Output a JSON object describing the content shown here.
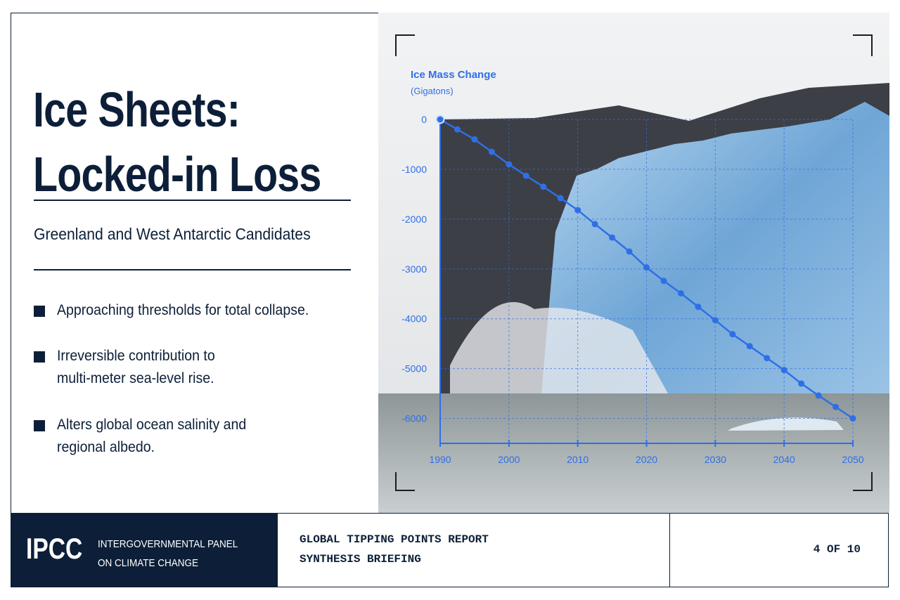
{
  "header": {
    "title_lines": [
      "Ice Sheets:",
      "Locked-in Loss"
    ],
    "subtitle": "Greenland and West Antarctic Candidates"
  },
  "bullets": [
    "Approaching thresholds for total collapse.",
    [
      "Irreversible contribution to",
      "multi-meter sea-level rise."
    ],
    [
      "Alters global ocean salinity and",
      "regional albedo."
    ]
  ],
  "chart_data": {
    "type": "line",
    "ylabel": "Ice Mass Change",
    "yunit": "(Gigatons)",
    "x": [
      1990,
      1992.5,
      1995,
      1997.5,
      2000,
      2002.5,
      2005,
      2007.5,
      2010,
      2012.5,
      2015,
      2017.5,
      2020,
      2022.5,
      2025,
      2027.5,
      2030,
      2032.5,
      2035,
      2037.5,
      2040,
      2042.5,
      2045,
      2047.5,
      2050
    ],
    "series": [
      {
        "color": "#2f6fe6",
        "values": [
          0,
          -200,
          -400,
          -650,
          -900,
          -1130,
          -1350,
          -1580,
          -1820,
          -2100,
          -2370,
          -2650,
          -2970,
          -3240,
          -3490,
          -3760,
          -4030,
          -4310,
          -4550,
          -4790,
          -5030,
          -5300,
          -5540,
          -5770,
          -6000
        ]
      }
    ],
    "xlim": [
      1990,
      2050
    ],
    "xticks": [
      1990,
      2000,
      2010,
      2020,
      2030,
      2040,
      2050
    ],
    "ylim": [
      -6500,
      0
    ],
    "yticks": [
      0,
      -1000,
      -2000,
      -3000,
      -4000,
      -5000,
      -6000
    ],
    "grid": true
  },
  "footer": {
    "logo": "IPCC",
    "org_lines": [
      "INTERGOVERNMENTAL PANEL",
      "ON CLIMATE CHANGE"
    ],
    "report_lines": [
      "GLOBAL TIPPING POINTS REPORT",
      "SYNTHESIS BRIEFING"
    ],
    "page": "4 OF 10"
  }
}
